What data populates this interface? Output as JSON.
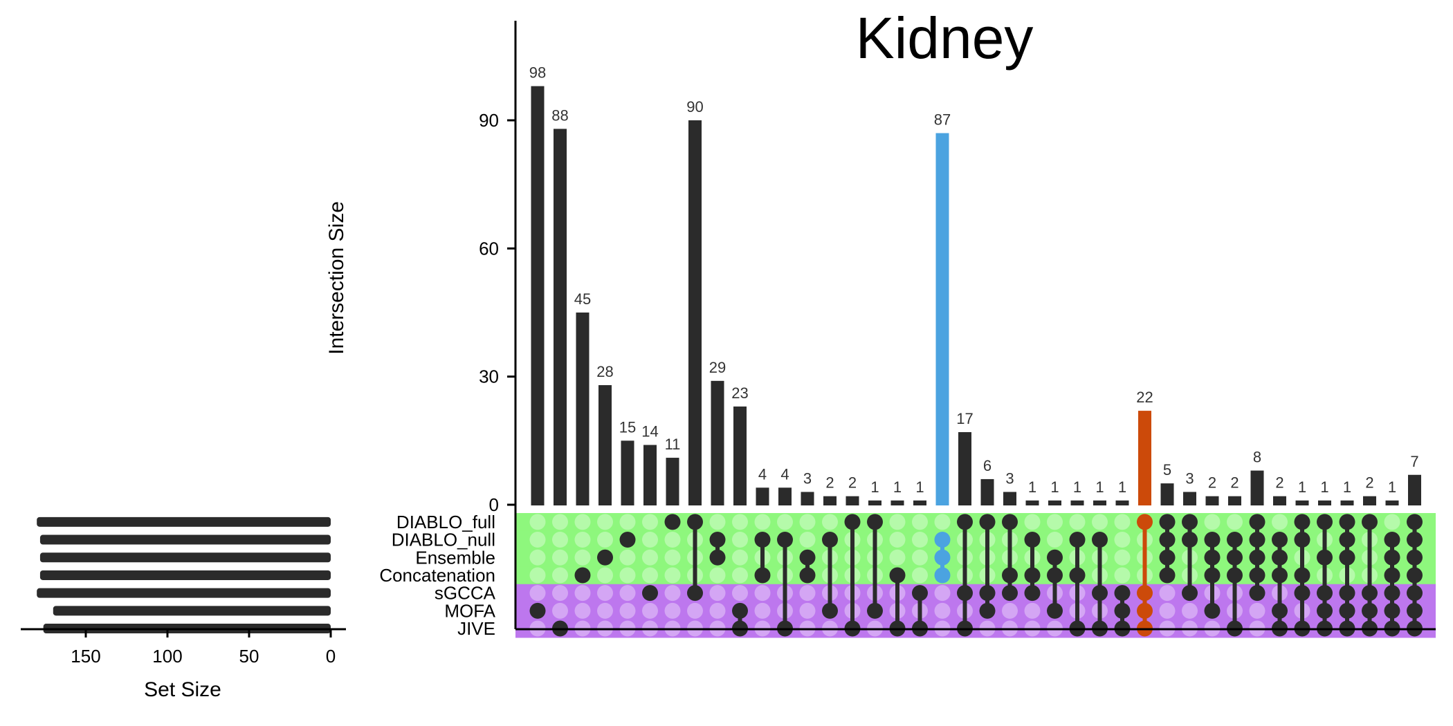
{
  "chart_data": {
    "type": "upset",
    "title": "Kidney",
    "ylabel": "Intersection Size",
    "set_size_label": "Set Size",
    "ylim": [
      0,
      110
    ],
    "yticks": [
      0,
      30,
      60,
      90
    ],
    "set_size_ticks": [
      150,
      100,
      50,
      0
    ],
    "set_size_max": 185,
    "colors": {
      "default": "#2b2b2b",
      "highlight_blue": "#4ba3e0",
      "highlight_orange": "#cc4a0a",
      "band_green": "#8ef77d",
      "band_purple": "#bd77ee"
    },
    "sets": [
      {
        "name": "DIABLO_full",
        "size": 180,
        "band": "green"
      },
      {
        "name": "DIABLO_null",
        "size": 178,
        "band": "green"
      },
      {
        "name": "Ensemble",
        "size": 178,
        "band": "green"
      },
      {
        "name": "Concatenation",
        "size": 178,
        "band": "green"
      },
      {
        "name": "sGCCA",
        "size": 180,
        "band": "purple"
      },
      {
        "name": "MOFA",
        "size": 170,
        "band": "purple"
      },
      {
        "name": "JIVE",
        "size": 176,
        "band": "purple"
      }
    ],
    "intersections": [
      {
        "value": 98,
        "label": "98",
        "members": [
          5
        ]
      },
      {
        "value": 88,
        "label": "88",
        "members": [
          6
        ]
      },
      {
        "value": 45,
        "label": "45",
        "members": [
          3
        ]
      },
      {
        "value": 28,
        "label": "28",
        "members": [
          2
        ]
      },
      {
        "value": 15,
        "label": "15",
        "members": [
          1
        ]
      },
      {
        "value": 14,
        "label": "14",
        "members": [
          4
        ]
      },
      {
        "value": 11,
        "label": "11",
        "members": [
          0
        ]
      },
      {
        "value": 90,
        "label": "90",
        "members": [
          0,
          4
        ]
      },
      {
        "value": 29,
        "label": "29",
        "members": [
          1,
          2
        ]
      },
      {
        "value": 23,
        "label": "23",
        "members": [
          5,
          6
        ]
      },
      {
        "value": 4,
        "label": "4",
        "members": [
          1,
          3
        ]
      },
      {
        "value": 4,
        "label": "4",
        "members": [
          1,
          6
        ]
      },
      {
        "value": 3,
        "label": "3",
        "members": [
          2,
          3
        ]
      },
      {
        "value": 2,
        "label": "2",
        "members": [
          1,
          5
        ]
      },
      {
        "value": 2,
        "label": "2",
        "members": [
          0,
          6
        ]
      },
      {
        "value": 1,
        "label": "1",
        "members": [
          0,
          5
        ]
      },
      {
        "value": 1,
        "label": "1",
        "members": [
          3,
          6
        ]
      },
      {
        "value": 1,
        "label": "1",
        "members": [
          4,
          6
        ]
      },
      {
        "value": 87,
        "label": "87",
        "members": [
          1,
          2,
          3
        ],
        "color": "highlight_blue"
      },
      {
        "value": 17,
        "label": "17",
        "members": [
          0,
          4,
          6
        ]
      },
      {
        "value": 6,
        "label": "6",
        "members": [
          0,
          4,
          5
        ]
      },
      {
        "value": 3,
        "label": "3",
        "members": [
          0,
          3,
          4
        ]
      },
      {
        "value": 1,
        "label": "1",
        "members": [
          1,
          3,
          4
        ]
      },
      {
        "value": 1,
        "label": "1",
        "members": [
          2,
          3,
          5
        ]
      },
      {
        "value": 1,
        "label": "1",
        "members": [
          1,
          3,
          6
        ]
      },
      {
        "value": 1,
        "label": "1",
        "members": [
          1,
          4,
          6
        ]
      },
      {
        "value": 1,
        "label": "1",
        "members": [
          4,
          5,
          6
        ]
      },
      {
        "value": 22,
        "label": "22",
        "members": [
          0,
          4,
          5,
          6
        ],
        "color": "highlight_orange"
      },
      {
        "value": 5,
        "label": "5",
        "members": [
          0,
          1,
          2,
          3
        ]
      },
      {
        "value": 3,
        "label": "3",
        "members": [
          0,
          1,
          4
        ]
      },
      {
        "value": 2,
        "label": "2",
        "members": [
          1,
          2,
          3,
          5
        ]
      },
      {
        "value": 2,
        "label": "2",
        "members": [
          1,
          2,
          3,
          6
        ]
      },
      {
        "value": 8,
        "label": "8",
        "members": [
          0,
          1,
          2,
          3,
          4
        ]
      },
      {
        "value": 2,
        "label": "2",
        "members": [
          1,
          2,
          3,
          5,
          6
        ]
      },
      {
        "value": 1,
        "label": "1",
        "members": [
          0,
          1,
          3,
          4,
          6
        ]
      },
      {
        "value": 1,
        "label": "1",
        "members": [
          0,
          2,
          4,
          5,
          6
        ]
      },
      {
        "value": 1,
        "label": "1",
        "members": [
          0,
          1,
          2,
          4,
          5,
          6
        ]
      },
      {
        "value": 2,
        "label": "2",
        "members": [
          0,
          4,
          5,
          6
        ]
      },
      {
        "value": 1,
        "label": "1",
        "members": [
          1,
          2,
          3,
          4,
          5,
          6
        ]
      },
      {
        "value": 7,
        "label": "7",
        "members": [
          0,
          1,
          2,
          3,
          4,
          5,
          6
        ]
      }
    ]
  }
}
